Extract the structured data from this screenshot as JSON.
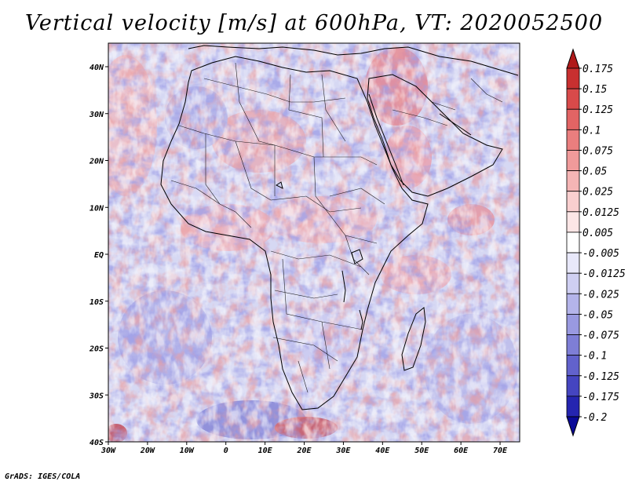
{
  "title": "Vertical velocity [m/s] at 600hPa, VT: 2020052500",
  "footer": "GrADS: IGES/COLA",
  "axes": {
    "lon_labels": [
      "30W",
      "20W",
      "10W",
      "0",
      "10E",
      "20E",
      "30E",
      "40E",
      "50E",
      "60E",
      "70E"
    ],
    "lat_labels": [
      "40N",
      "30N",
      "20N",
      "10N",
      "EQ",
      "10S",
      "20S",
      "30S",
      "40S"
    ]
  },
  "colorbar": {
    "levels": [
      "0.175",
      "0.15",
      "0.125",
      "0.1",
      "0.075",
      "0.05",
      "0.025",
      "0.0125",
      "0.005",
      "-0.005",
      "-0.0125",
      "-0.025",
      "-0.05",
      "-0.075",
      "-0.1",
      "-0.125",
      "-0.175",
      "-0.2"
    ],
    "colors": [
      "#b01a1a",
      "#c83030",
      "#d84a4a",
      "#e26464",
      "#ea7e7e",
      "#f09a9a",
      "#f5b5b5",
      "#f9cfcf",
      "#fce6e6",
      "#ffffff",
      "#e8e8fa",
      "#cfcff2",
      "#b4b4ea",
      "#9999e0",
      "#7e7ed6",
      "#6262cc",
      "#4545c0",
      "#2525b0",
      "#0a0a98"
    ]
  },
  "palette": {
    "ocean_base": "#d8daf4",
    "land_base": "#e8d8ec"
  }
}
